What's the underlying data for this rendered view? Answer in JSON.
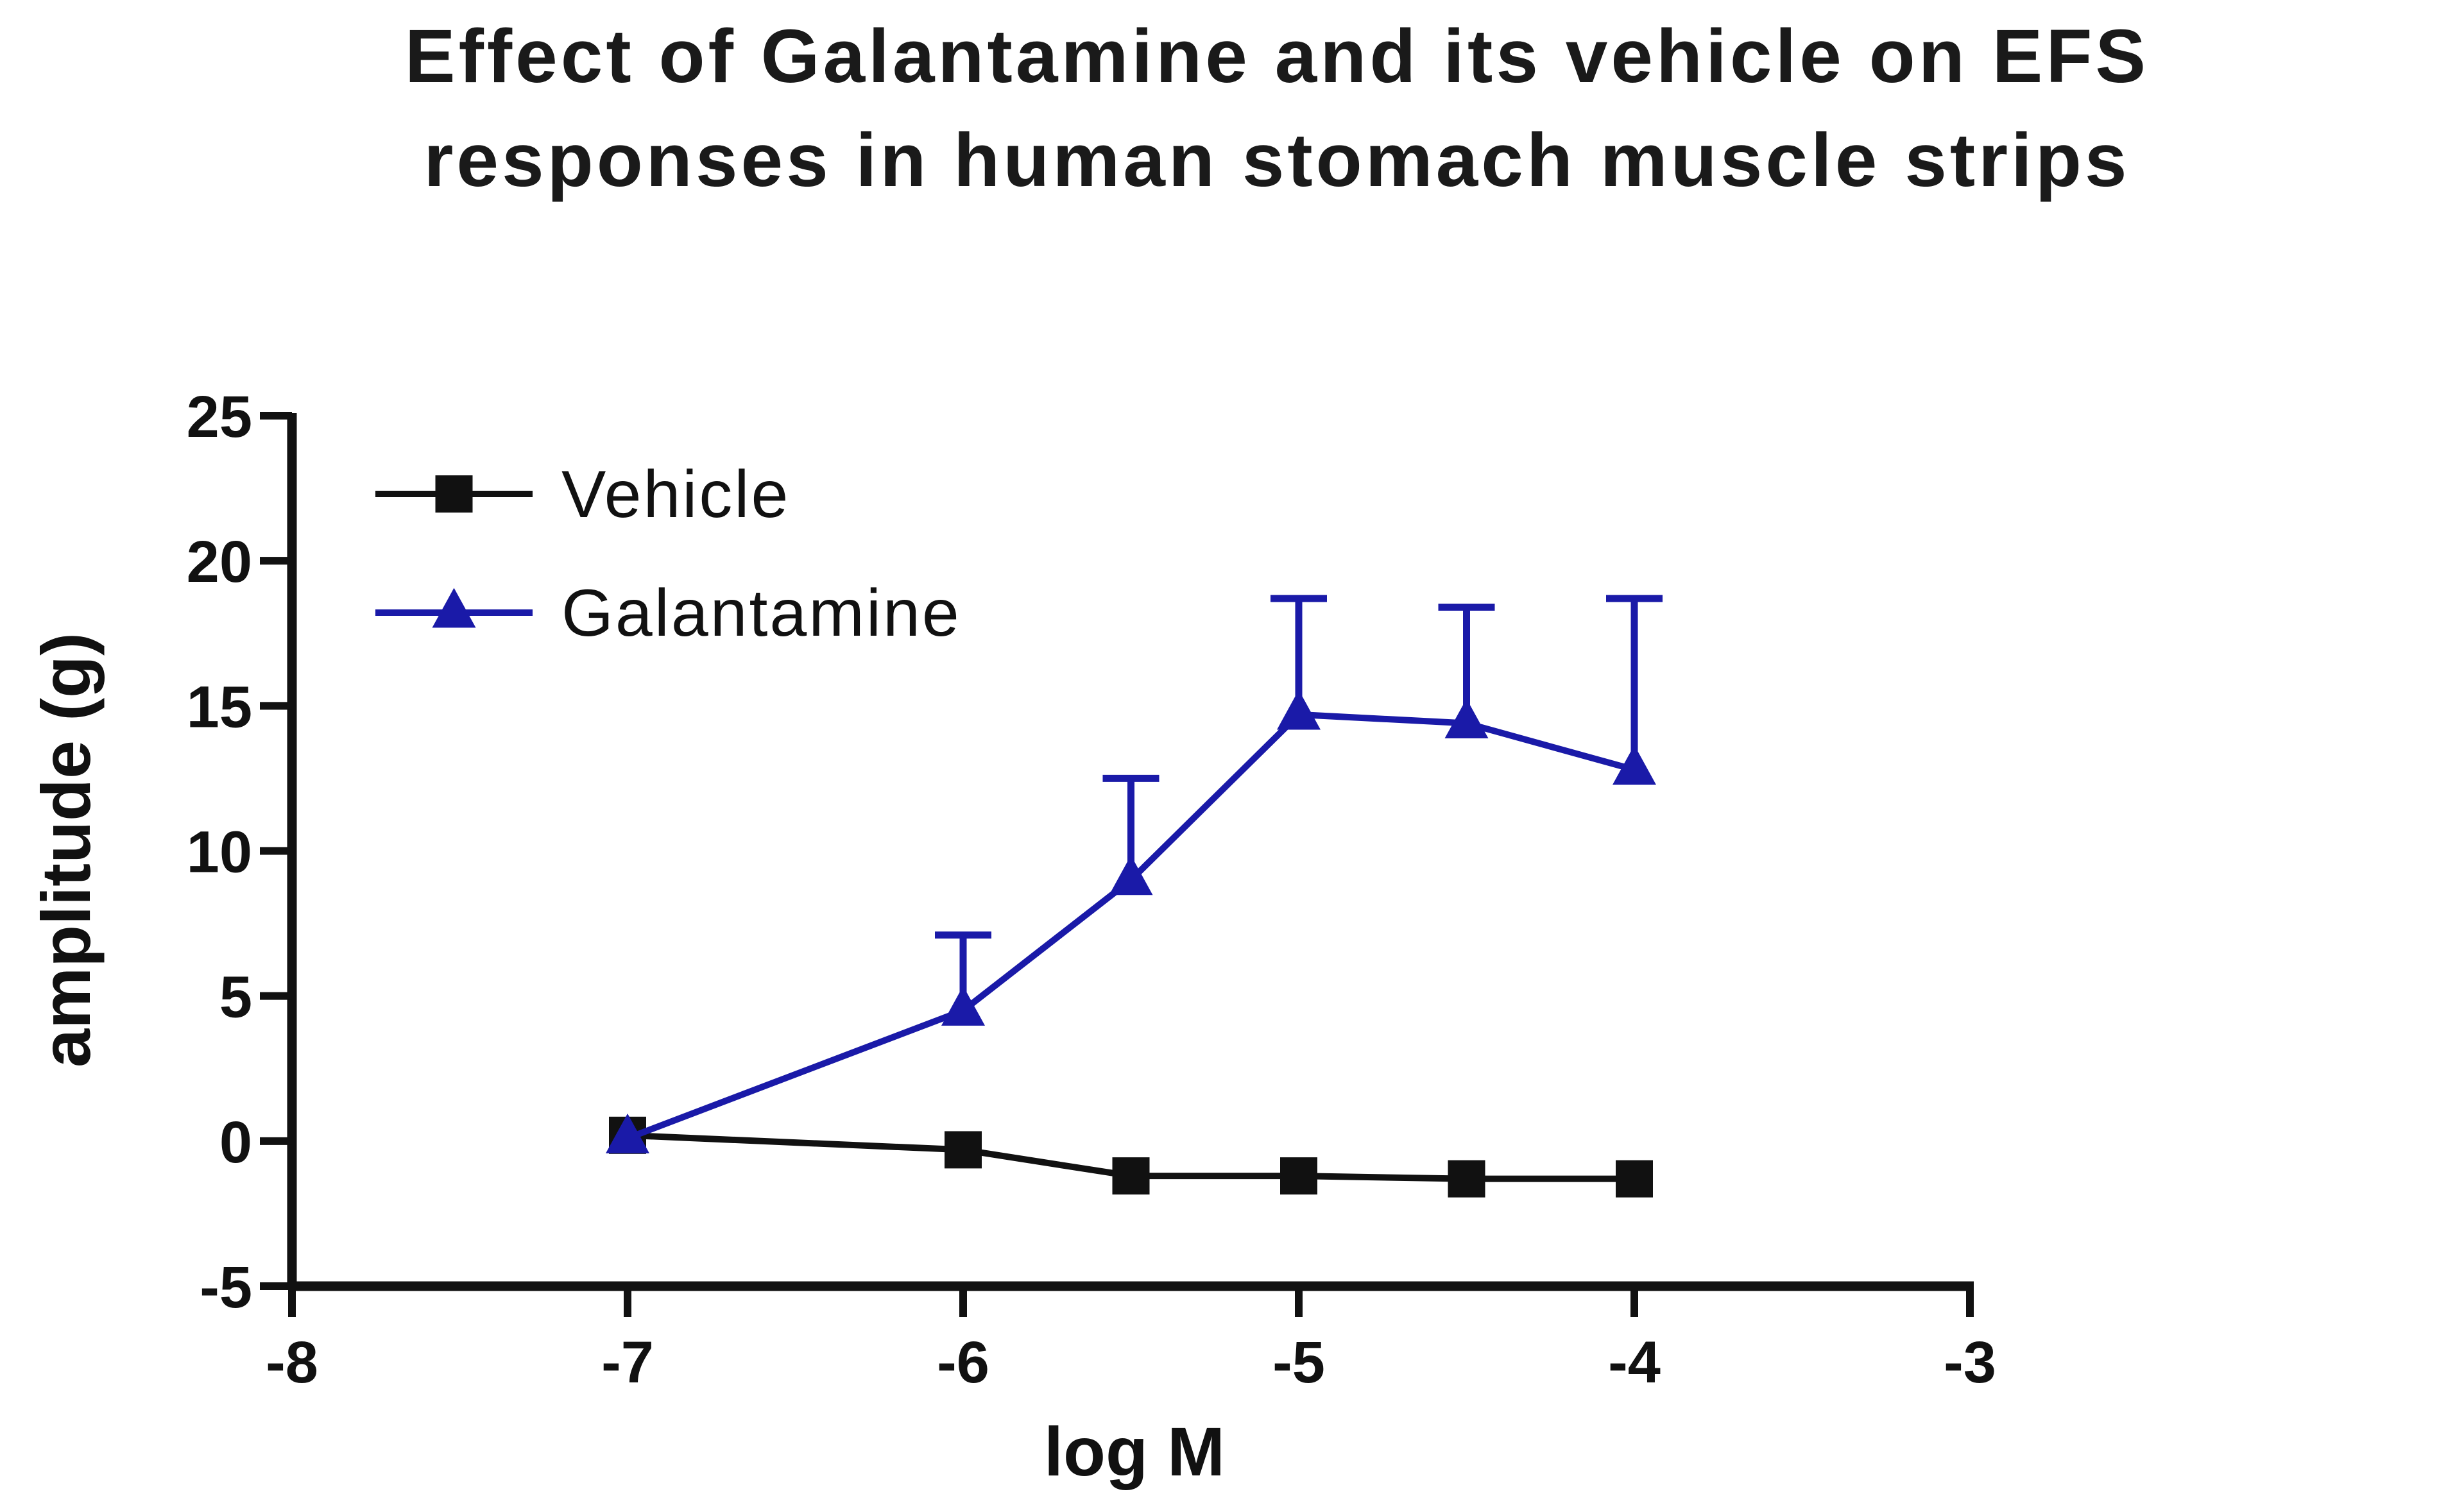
{
  "chart_data": {
    "type": "line",
    "title": "Effect of Galantamine and its vehicle on EFS responses in human stomach muscle strips",
    "title_lines": [
      "Effect of Galantamine and its vehicle on EFS",
      "responses in human stomach muscle strips"
    ],
    "xlabel": "log M",
    "ylabel": "amplitude (g)",
    "xlim": [
      -8,
      -3
    ],
    "ylim": [
      -5,
      25
    ],
    "x_ticks": [
      -8,
      -7,
      -6,
      -5,
      -4,
      -3
    ],
    "y_ticks": [
      -5,
      0,
      5,
      10,
      15,
      20,
      25
    ],
    "x_tick_labels": [
      "-8",
      "-7",
      "-6",
      "-5",
      "-4",
      "-3"
    ],
    "y_tick_labels": [
      "-5",
      "0",
      "5",
      "10",
      "15",
      "20",
      "25"
    ],
    "grid": false,
    "legend_position": "top-left",
    "series": [
      {
        "name": "Vehicle",
        "color": "#111111",
        "marker": "square",
        "x": [
          -7,
          -6,
          -5.5,
          -5,
          -4.5,
          -4
        ],
        "y": [
          0.2,
          -0.3,
          -1.2,
          -1.2,
          -1.3,
          -1.3
        ],
        "error_plus": [
          0,
          0,
          0,
          0,
          0,
          0
        ]
      },
      {
        "name": "Galantamine",
        "color": "#1a1aa8",
        "marker": "triangle",
        "x": [
          -7,
          -6,
          -5.5,
          -5,
          -4.5,
          -4
        ],
        "y": [
          0.1,
          4.5,
          9.0,
          14.7,
          14.4,
          12.8
        ],
        "error_plus": [
          0,
          2.6,
          3.5,
          4.0,
          4.0,
          5.9
        ]
      }
    ]
  }
}
